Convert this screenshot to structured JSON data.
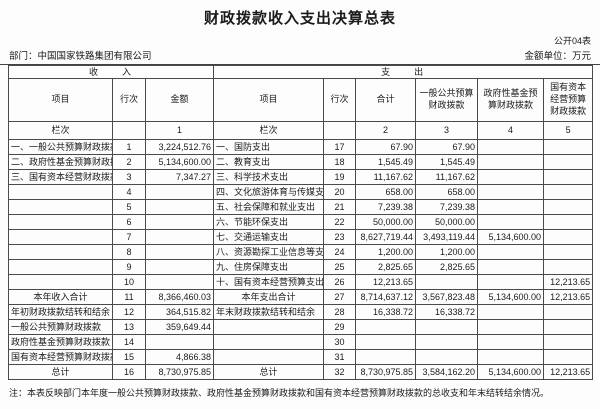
{
  "title": "财政拨款收入支出决算总表",
  "form_code": "公开04表",
  "department": "部门：中国国家铁路集团有限公司",
  "unit_note": "金额单位：万元",
  "table": {
    "income_header": "收　　入",
    "expense_header": "支　　出",
    "columns": [
      "项目",
      "行次",
      "金额",
      "项目",
      "行次",
      "合计",
      "一般公共预算财政拨款",
      "政府性基金预算财政拨款",
      "国有资本经营预算财政拨款"
    ],
    "lanci": [
      "栏次",
      "",
      "1",
      "栏次",
      "",
      "2",
      "3",
      "4",
      "5"
    ],
    "rows": [
      {
        "income_style": "item",
        "expense_style": "item",
        "cells": [
          "一、一般公共预算财政拨款",
          "1",
          "3,224,512.76",
          "一、国防支出",
          "17",
          "67.90",
          "67.90",
          "",
          ""
        ]
      },
      {
        "income_style": "item",
        "expense_style": "item",
        "cells": [
          "二、政府性基金预算财政拨款",
          "2",
          "5,134,600.00",
          "二、教育支出",
          "18",
          "1,545.49",
          "1,545.49",
          "",
          ""
        ]
      },
      {
        "income_style": "item",
        "expense_style": "item",
        "cells": [
          "三、国有资本经营财政拨款",
          "3",
          "7,347.27",
          "三、科学技术支出",
          "19",
          "11,167.62",
          "11,167.62",
          "",
          ""
        ]
      },
      {
        "income_style": "none",
        "expense_style": "item",
        "cells": [
          "",
          "4",
          "",
          "四、文化旅游体育与传媒支出",
          "20",
          "658.00",
          "658.00",
          "",
          ""
        ]
      },
      {
        "income_style": "none",
        "expense_style": "item",
        "cells": [
          "",
          "5",
          "",
          "五、社会保障和就业支出",
          "21",
          "7,239.38",
          "7,239.38",
          "",
          ""
        ]
      },
      {
        "income_style": "none",
        "expense_style": "item",
        "cells": [
          "",
          "6",
          "",
          "六、节能环保支出",
          "22",
          "50,000.00",
          "50,000.00",
          "",
          ""
        ]
      },
      {
        "income_style": "none",
        "expense_style": "item",
        "cells": [
          "",
          "7",
          "",
          "七、交通运输支出",
          "23",
          "8,627,719.44",
          "3,493,119.44",
          "5,134,600.00",
          ""
        ]
      },
      {
        "income_style": "none",
        "expense_style": "item",
        "cells": [
          "",
          "8",
          "",
          "八、资源勘探工业信息等支出",
          "24",
          "1,200.00",
          "1,200.00",
          "",
          ""
        ]
      },
      {
        "income_style": "none",
        "expense_style": "item",
        "cells": [
          "",
          "9",
          "",
          "九、住房保障支出",
          "25",
          "2,825.65",
          "2,825.65",
          "",
          ""
        ]
      },
      {
        "income_style": "none",
        "expense_style": "item",
        "cells": [
          "",
          "10",
          "",
          "十、国有资本经营预算支出",
          "26",
          "12,213.65",
          "",
          "",
          "12,213.65"
        ]
      },
      {
        "income_style": "total",
        "expense_style": "total",
        "cells": [
          "本年收入合计",
          "11",
          "8,366,460.03",
          "本年支出合计",
          "27",
          "8,714,637.12",
          "3,567,823.48",
          "5,134,600.00",
          "12,213.65"
        ]
      },
      {
        "income_style": "item",
        "expense_style": "item",
        "cells": [
          "年初财政拨款结转和结余",
          "12",
          "364,515.82",
          "年末财政拨款结转和结余",
          "28",
          "16,338.72",
          "16,338.72",
          "",
          ""
        ]
      },
      {
        "income_style": "sub",
        "expense_style": "none",
        "cells": [
          "一般公共预算财政拨款",
          "13",
          "359,649.44",
          "",
          "29",
          "",
          "",
          "",
          ""
        ]
      },
      {
        "income_style": "sub",
        "expense_style": "none",
        "cells": [
          "政府性基金预算财政拨款",
          "14",
          "",
          "",
          "30",
          "",
          "",
          "",
          ""
        ]
      },
      {
        "income_style": "sub",
        "expense_style": "none",
        "cells": [
          "国有资本经营预算财政拨款",
          "15",
          "4,866.38",
          "",
          "31",
          "",
          "",
          "",
          ""
        ]
      },
      {
        "income_style": "total",
        "expense_style": "total",
        "cells": [
          "总计",
          "16",
          "8,730,975.85",
          "总计",
          "32",
          "8,730,975.85",
          "3,584,162.20",
          "5,134,600.00",
          "12,213.65"
        ]
      }
    ]
  },
  "footnote": "注：本表反映部门本年度一般公共预算财政拨款、政府性基金预算财政拨款和国有资本经营预算财政拨款的总收支和年末结转结余情况。"
}
